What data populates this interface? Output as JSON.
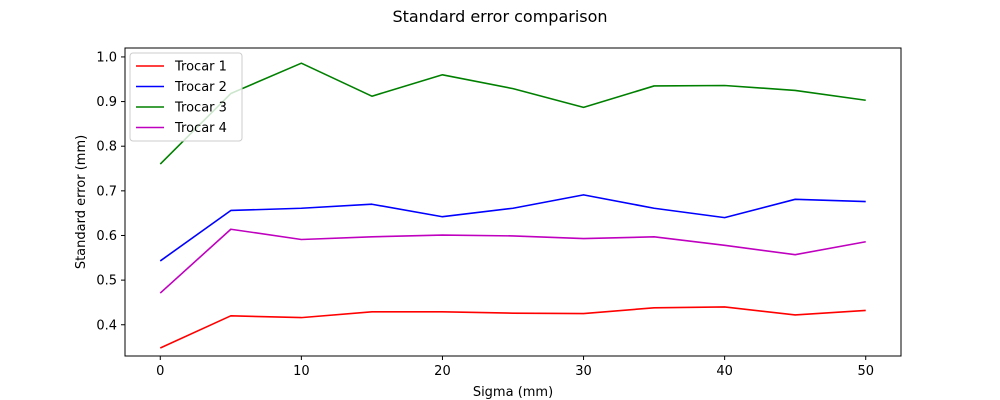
{
  "chart_data": {
    "type": "line",
    "title": "Standard error comparison",
    "xlabel": "Sigma (mm)",
    "ylabel": "Standard error (mm)",
    "xlim": [
      -2.5,
      52.5
    ],
    "ylim": [
      0.33,
      1.02
    ],
    "xticks": [
      0,
      10,
      20,
      30,
      40,
      50
    ],
    "yticks": [
      0.4,
      0.5,
      0.6,
      0.7,
      0.8,
      0.9,
      1.0
    ],
    "ytick_labels": [
      "0.4",
      "0.5",
      "0.6",
      "0.7",
      "0.8",
      "0.9",
      "1.0"
    ],
    "grid": false,
    "legend_position": "upper-left",
    "x": [
      0,
      5,
      10,
      15,
      20,
      25,
      30,
      35,
      40,
      45,
      50
    ],
    "series": [
      {
        "name": "Trocar 1",
        "color": "#ff0000",
        "values": [
          0.348,
          0.42,
          0.416,
          0.429,
          0.429,
          0.426,
          0.425,
          0.438,
          0.44,
          0.422,
          0.432
        ]
      },
      {
        "name": "Trocar 2",
        "color": "#0000ff",
        "values": [
          0.543,
          0.656,
          0.661,
          0.67,
          0.642,
          0.661,
          0.691,
          0.661,
          0.64,
          0.681,
          0.676
        ]
      },
      {
        "name": "Trocar 3",
        "color": "#008000",
        "values": [
          0.76,
          0.918,
          0.986,
          0.912,
          0.96,
          0.929,
          0.887,
          0.935,
          0.936,
          0.925,
          0.903
        ]
      },
      {
        "name": "Trocar 4",
        "color": "#bf00bf",
        "values": [
          0.471,
          0.614,
          0.591,
          0.597,
          0.601,
          0.599,
          0.593,
          0.597,
          0.578,
          0.557,
          0.586
        ]
      }
    ]
  }
}
